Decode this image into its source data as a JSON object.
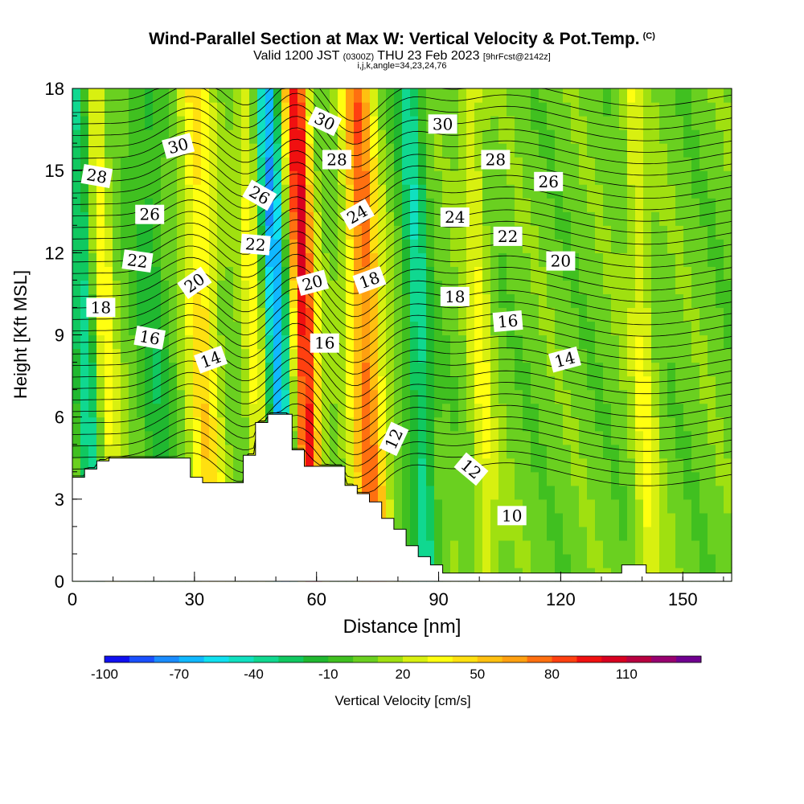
{
  "header": {
    "title": "Wind-Parallel Section at Max W: Vertical Velocity & Pot.Temp.",
    "title_mark": "(C)",
    "subtitle_a": "Valid 1200 JST ",
    "subtitle_b": "(0300Z)",
    "subtitle_c": " THU 23 Feb 2023 ",
    "subtitle_d": "[9hrFcst@2142z]",
    "subtitle2": "i,j,k,angle=34,23,24,76"
  },
  "chart_data": {
    "type": "heatmap",
    "title": "Wind-Parallel Section at Max W: Vertical Velocity & Pot.Temp.",
    "xlabel": "Distance [nm]",
    "ylabel": "Height [Kft MSL]",
    "xlim": [
      0,
      162
    ],
    "ylim": [
      0,
      18
    ],
    "x_ticks": [
      0,
      30,
      60,
      90,
      120,
      150
    ],
    "y_ticks": [
      0,
      3,
      6,
      9,
      12,
      15,
      18
    ],
    "colorbar": {
      "label": "Vertical Velocity [cm/s]",
      "tick_labels": [
        "-100",
        "-70",
        "-40",
        "-10",
        "20",
        "50",
        "80",
        "110"
      ],
      "tick_values": [
        -100,
        -70,
        -40,
        -10,
        20,
        50,
        80,
        110
      ],
      "levels": [
        -100,
        -90,
        -80,
        -70,
        -60,
        -50,
        -40,
        -30,
        -20,
        -10,
        0,
        10,
        20,
        30,
        40,
        50,
        60,
        70,
        80,
        90,
        100,
        110,
        120,
        130
      ],
      "colors": [
        "#1010f0",
        "#1a50ff",
        "#1a8cff",
        "#10b8ff",
        "#10e0f0",
        "#10e0c0",
        "#10d890",
        "#10c860",
        "#20b830",
        "#40c020",
        "#6ad020",
        "#a0e010",
        "#d8f010",
        "#ffff10",
        "#ffe010",
        "#ffc010",
        "#ffa010",
        "#ff7010",
        "#ff4010",
        "#f01010",
        "#d80020",
        "#b80040",
        "#980070",
        "#700090"
      ]
    },
    "background_w": 5,
    "updrafts": [
      {
        "x": 8,
        "w": 30,
        "width": 2.5
      },
      {
        "x": 32,
        "w": 40,
        "width": 4
      },
      {
        "x": 45,
        "w": 30,
        "width": 3
      },
      {
        "x": 57,
        "w": 95,
        "width": 3
      },
      {
        "x": 72,
        "w": 70,
        "width": 4
      },
      {
        "x": 100,
        "w": 25,
        "width": 3
      },
      {
        "x": 140,
        "w": 25,
        "width": 3
      }
    ],
    "downdrafts": [
      {
        "x": 50,
        "w": -75,
        "width": 3
      },
      {
        "x": 3,
        "w": -40,
        "width": 2.5
      },
      {
        "x": 85,
        "w": -40,
        "width": 3
      },
      {
        "x": 20,
        "w": -20,
        "width": 4
      }
    ],
    "terrain": [
      [
        0,
        3.8
      ],
      [
        3,
        3.8
      ],
      [
        3,
        4.1
      ],
      [
        6,
        4.1
      ],
      [
        6,
        4.4
      ],
      [
        9,
        4.4
      ],
      [
        9,
        4.5
      ],
      [
        29,
        4.5
      ],
      [
        29,
        3.8
      ],
      [
        32,
        3.8
      ],
      [
        32,
        3.6
      ],
      [
        42,
        3.6
      ],
      [
        42,
        4.6
      ],
      [
        45,
        4.6
      ],
      [
        45,
        5.8
      ],
      [
        48,
        5.8
      ],
      [
        48,
        6.1
      ],
      [
        54,
        6.1
      ],
      [
        54,
        4.8
      ],
      [
        57,
        4.8
      ],
      [
        57,
        4.2
      ],
      [
        67,
        4.2
      ],
      [
        67,
        3.5
      ],
      [
        70,
        3.5
      ],
      [
        70,
        3.2
      ],
      [
        73,
        3.2
      ],
      [
        73,
        2.9
      ],
      [
        76,
        2.9
      ],
      [
        76,
        2.3
      ],
      [
        79,
        2.3
      ],
      [
        79,
        1.9
      ],
      [
        82,
        1.9
      ],
      [
        82,
        1.3
      ],
      [
        85,
        1.3
      ],
      [
        85,
        0.9
      ],
      [
        88,
        0.9
      ],
      [
        88,
        0.6
      ],
      [
        91,
        0.6
      ],
      [
        91,
        0.3
      ],
      [
        135,
        0.3
      ],
      [
        135,
        0.6
      ],
      [
        141,
        0.6
      ],
      [
        141,
        0.3
      ],
      [
        162,
        0.3
      ]
    ],
    "theta_labels": [
      {
        "text": "30",
        "x": 26,
        "y": 15.9,
        "angle": -15
      },
      {
        "text": "28",
        "x": 6,
        "y": 14.8,
        "angle": 10
      },
      {
        "text": "26",
        "x": 19,
        "y": 13.4,
        "angle": 0
      },
      {
        "text": "22",
        "x": 16,
        "y": 11.7,
        "angle": 8
      },
      {
        "text": "20",
        "x": 30,
        "y": 10.9,
        "angle": -35
      },
      {
        "text": "18",
        "x": 7,
        "y": 10.0,
        "angle": 0
      },
      {
        "text": "16",
        "x": 19,
        "y": 8.9,
        "angle": 10
      },
      {
        "text": "14",
        "x": 34,
        "y": 8.1,
        "angle": -20
      },
      {
        "text": "26",
        "x": 46,
        "y": 14.1,
        "angle": 30
      },
      {
        "text": "22",
        "x": 45,
        "y": 12.3,
        "angle": 5
      },
      {
        "text": "30",
        "x": 62,
        "y": 16.8,
        "angle": 25
      },
      {
        "text": "28",
        "x": 65,
        "y": 15.4,
        "angle": 0
      },
      {
        "text": "24",
        "x": 70,
        "y": 13.4,
        "angle": -30
      },
      {
        "text": "20",
        "x": 59,
        "y": 10.9,
        "angle": -15
      },
      {
        "text": "18",
        "x": 73,
        "y": 11.0,
        "angle": -20
      },
      {
        "text": "16",
        "x": 62,
        "y": 8.7,
        "angle": 0
      },
      {
        "text": "30",
        "x": 91,
        "y": 16.7,
        "angle": 0
      },
      {
        "text": "28",
        "x": 104,
        "y": 15.4,
        "angle": 0
      },
      {
        "text": "26",
        "x": 117,
        "y": 14.6,
        "angle": 0
      },
      {
        "text": "24",
        "x": 94,
        "y": 13.3,
        "angle": 0
      },
      {
        "text": "22",
        "x": 107,
        "y": 12.6,
        "angle": 0
      },
      {
        "text": "20",
        "x": 120,
        "y": 11.7,
        "angle": 0
      },
      {
        "text": "18",
        "x": 94,
        "y": 10.4,
        "angle": 0
      },
      {
        "text": "16",
        "x": 107,
        "y": 9.5,
        "angle": -5
      },
      {
        "text": "14",
        "x": 121,
        "y": 8.1,
        "angle": -15
      },
      {
        "text": "12",
        "x": 79,
        "y": 5.2,
        "angle": -65
      },
      {
        "text": "12",
        "x": 98,
        "y": 4.1,
        "angle": 40
      },
      {
        "text": "10",
        "x": 108,
        "y": 2.4,
        "angle": 0
      }
    ]
  }
}
